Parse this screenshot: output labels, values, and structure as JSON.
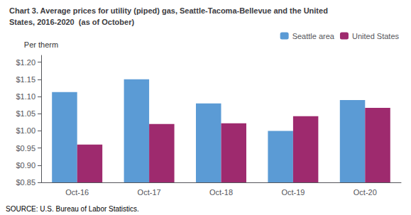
{
  "chart_data": {
    "type": "bar",
    "title": "Chart 3. Average prices for utility (piped) gas, Seattle-Tacoma-Bellevue and the United",
    "subtitle": "States, 2016-2020  (as of October)",
    "ylabel": "Per therm",
    "source": "SOURCE: U.S. Bureau of Labor Statistics.",
    "categories": [
      "Oct-16",
      "Oct-17",
      "Oct-18",
      "Oct-19",
      "Oct-20"
    ],
    "series": [
      {
        "name": "Seattle area",
        "color": "#5B9BD5",
        "values": [
          1.113,
          1.15,
          1.08,
          1.0,
          1.09
        ]
      },
      {
        "name": "United States",
        "color": "#9E2A6E",
        "values": [
          0.96,
          1.02,
          1.022,
          1.043,
          1.067
        ]
      }
    ],
    "ylim": [
      0.85,
      1.22
    ],
    "yticks": [
      {
        "value": 0.85,
        "label": "$0.85"
      },
      {
        "value": 0.9,
        "label": "$0.90"
      },
      {
        "value": 0.95,
        "label": "$0.95"
      },
      {
        "value": 1.0,
        "label": "$1.00"
      },
      {
        "value": 1.05,
        "label": "$1.05"
      },
      {
        "value": 1.1,
        "label": "$1.10"
      },
      {
        "value": 1.15,
        "label": "$1.15"
      },
      {
        "value": 1.2,
        "label": "$1.20"
      }
    ],
    "grid": false,
    "legend": "upper right"
  }
}
